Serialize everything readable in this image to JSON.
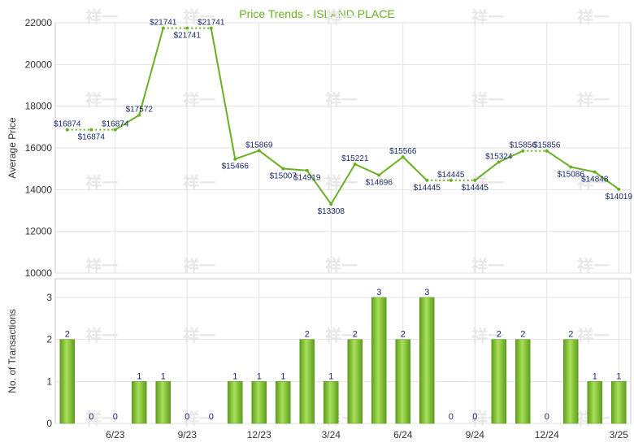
{
  "chart_data": [
    {
      "type": "line",
      "title": "Price Trends - ISLAND PLACE",
      "ylabel": "Average Price",
      "ylim": [
        10000,
        22000
      ],
      "yticks": [
        "22000",
        "20000",
        "18000",
        "16000",
        "14000",
        "12000",
        "10000"
      ],
      "grid": true,
      "line_color": "#6ab023",
      "series": [
        {
          "values": [
            16874,
            16874,
            16874,
            17572,
            21741,
            21741,
            21741,
            15466,
            15869,
            15007,
            14919,
            13308,
            15221,
            14696,
            15566,
            14445,
            14445,
            14445,
            15324,
            15856,
            15856,
            15086,
            14848,
            14019
          ],
          "labels": [
            "$16874",
            "$16874",
            "$16874",
            "$17572",
            "$21741",
            "$21741",
            "$21741",
            "$15466",
            "$15869",
            "$15007",
            "$14919",
            "$13308",
            "$15221",
            "$14696",
            "$15566",
            "$14445",
            "$14445",
            "$14445",
            "$15324",
            "$15856",
            "$15856",
            "$15086",
            "$14848",
            "$14019"
          ]
        }
      ],
      "interpolated_segments": [
        [
          0,
          2
        ],
        [
          4,
          6
        ],
        [
          15,
          17
        ],
        [
          19,
          20
        ]
      ]
    },
    {
      "type": "bar",
      "ylabel": "No. of Transactions",
      "ylim": [
        0,
        3
      ],
      "yticks": [
        "3",
        "2",
        "1",
        "0"
      ],
      "grid": true,
      "bar_color": "#7cc030",
      "values": [
        2,
        0,
        0,
        1,
        1,
        0,
        0,
        1,
        1,
        1,
        2,
        1,
        2,
        3,
        2,
        3,
        0,
        0,
        2,
        2,
        0,
        2,
        1,
        1
      ],
      "x_ticks": [
        {
          "label": "6/23",
          "index": 2
        },
        {
          "label": "9/23",
          "index": 5
        },
        {
          "label": "12/23",
          "index": 8
        },
        {
          "label": "3/24",
          "index": 11
        },
        {
          "label": "6/24",
          "index": 14
        },
        {
          "label": "9/24",
          "index": 17
        },
        {
          "label": "12/24",
          "index": 20
        },
        {
          "label": "3/25",
          "index": 23
        }
      ]
    }
  ],
  "watermark": "祥一"
}
